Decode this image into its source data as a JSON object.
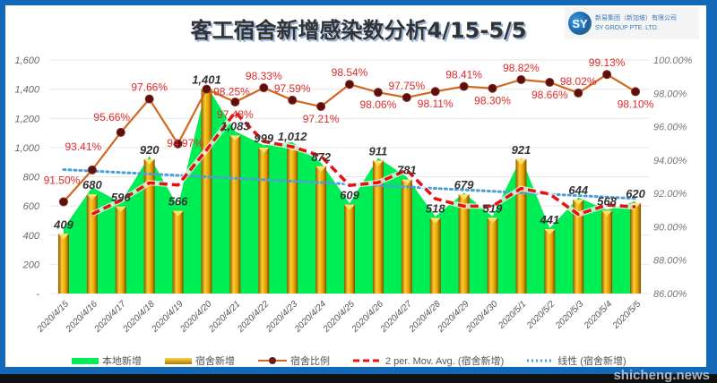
{
  "title": "客工宿舍新增感染数分析4/15-5/5",
  "logo": {
    "cn": "新易集团（新加坡）有限公司",
    "en": "SY GROUP PTE. LTD.",
    "mark": "SY"
  },
  "watermark": "shicheng.news",
  "chart_data": {
    "type": "bar",
    "title": "客工宿舍新增感染数分析4/15-5/5",
    "categories": [
      "2020/4/15",
      "2020/4/16",
      "2020/4/17",
      "2020/4/18",
      "2020/4/19",
      "2020/4/20",
      "2020/4/21",
      "2020/4/22",
      "2020/4/23",
      "2020/4/24",
      "2020/4/25",
      "2020/4/26",
      "2020/4/27",
      "2020/4/28",
      "2020/4/29",
      "2020/4/30",
      "2020/5/1",
      "2020/5/2",
      "2020/5/3",
      "2020/5/4",
      "2020/5/5"
    ],
    "series": [
      {
        "name": "本地新增",
        "type": "area",
        "color": "#00ee55",
        "values": [
          447,
          728,
          623,
          942,
          596,
          1426,
          1111,
          1016,
          1037,
          897,
          618,
          929,
          799,
          528,
          690,
          528,
          932,
          447,
          657,
          573,
          632
        ]
      },
      {
        "name": "宿舍新增",
        "type": "bar",
        "color": "#e8a800",
        "values": [
          409,
          680,
          596,
          920,
          566,
          1401,
          1083,
          999,
          1012,
          872,
          609,
          911,
          781,
          518,
          679,
          519,
          921,
          441,
          644,
          568,
          620
        ],
        "labels": [
          "409",
          "680",
          "596",
          "920",
          "566",
          "1,401",
          "1,083",
          "999",
          "1,012",
          "872",
          "609",
          "911",
          "781",
          "518",
          "679",
          "519",
          "921",
          "441",
          "644",
          "568",
          "620"
        ]
      },
      {
        "name": "宿舍比例",
        "type": "line",
        "axis": "right",
        "color": "#d2691e",
        "values": [
          91.5,
          93.41,
          95.66,
          97.66,
          94.97,
          98.25,
          97.48,
          98.33,
          97.59,
          97.21,
          98.54,
          98.06,
          97.75,
          98.11,
          98.41,
          98.3,
          98.82,
          98.66,
          98.02,
          99.13,
          98.1
        ],
        "labels": [
          "91.50%",
          "93.41%",
          "95.66%",
          "97.66%",
          "94.97%",
          "98.25%",
          "97.48%",
          "98.33%",
          "97.59%",
          "97.21%",
          "98.54%",
          "98.06%",
          "97.75%",
          "98.11%",
          "98.41%",
          "98.30%",
          "98.82%",
          "98.66%",
          "98.02%",
          "99.13%",
          "98.10%"
        ]
      },
      {
        "name": "2 per. Mov. Avg. (宿舍新增)",
        "type": "moving-average",
        "color": "#e81010"
      },
      {
        "name": "线性 (宿舍新增)",
        "type": "linear-trend",
        "color": "#4aa0d8"
      }
    ],
    "y_left": {
      "ylim": [
        0,
        1600
      ],
      "ticks": [
        "-",
        "200",
        "400",
        "600",
        "800",
        "1,000",
        "1,200",
        "1,400",
        "1,600"
      ]
    },
    "y_right": {
      "ylim": [
        86,
        100
      ],
      "ticks": [
        "86.00%",
        "88.00%",
        "90.00%",
        "92.00%",
        "94.00%",
        "96.00%",
        "98.00%",
        "100.00%"
      ]
    },
    "grid": true,
    "legend": "bottom"
  }
}
